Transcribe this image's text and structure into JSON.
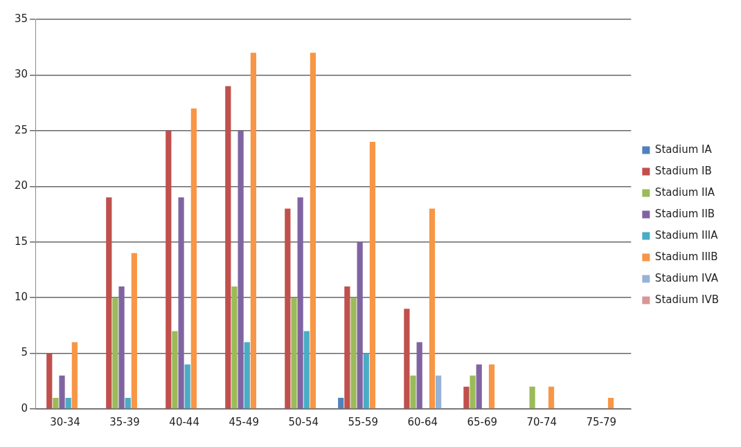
{
  "chart_data": {
    "type": "bar",
    "categories": [
      "30-34",
      "35-39",
      "40-44",
      "45-49",
      "50-54",
      "55-59",
      "60-64",
      "65-69",
      "70-74",
      "75-79"
    ],
    "series": [
      {
        "name": "Stadium IA",
        "color": "#4f81bd",
        "values": [
          0,
          0,
          0,
          0,
          0,
          1,
          0,
          0,
          0,
          0
        ]
      },
      {
        "name": "Stadium IB",
        "color": "#c0504d",
        "values": [
          5,
          19,
          25,
          29,
          18,
          11,
          9,
          2,
          0,
          0
        ]
      },
      {
        "name": "Stadium IIA",
        "color": "#9bbb59",
        "values": [
          1,
          10,
          7,
          11,
          10,
          10,
          3,
          3,
          2,
          0
        ]
      },
      {
        "name": "Stadium IIB",
        "color": "#8064a2",
        "values": [
          3,
          11,
          19,
          25,
          19,
          15,
          6,
          4,
          0,
          0
        ]
      },
      {
        "name": "Stadium IIIA",
        "color": "#4bacc6",
        "values": [
          1,
          1,
          4,
          6,
          7,
          5,
          0,
          0,
          0,
          0
        ]
      },
      {
        "name": "Stadium IIIB",
        "color": "#f79646",
        "values": [
          6,
          14,
          27,
          32,
          32,
          24,
          18,
          4,
          2,
          1
        ]
      },
      {
        "name": "Stadium IVA",
        "color": "#95b3d7",
        "values": [
          0,
          0,
          0,
          0,
          0,
          0,
          3,
          0,
          0,
          0
        ]
      },
      {
        "name": "Stadium IVB",
        "color": "#d99694",
        "values": [
          0,
          0,
          0,
          0,
          0,
          0,
          0,
          0,
          0,
          0
        ]
      }
    ],
    "ylim": [
      0,
      35
    ],
    "yticks": [
      0,
      5,
      10,
      15,
      20,
      25,
      30,
      35
    ],
    "grid": "y",
    "legend": "right"
  }
}
